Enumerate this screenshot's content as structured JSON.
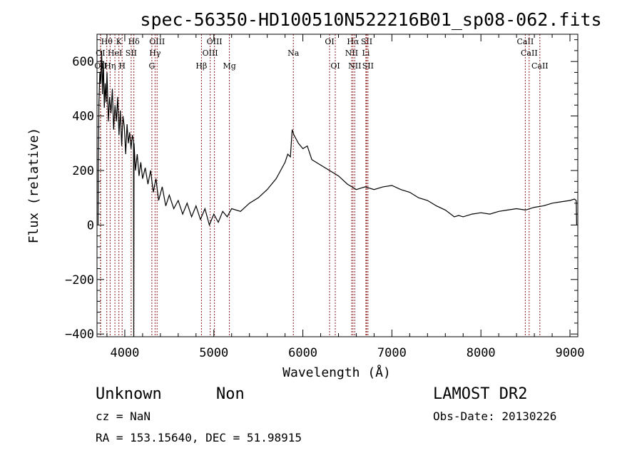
{
  "chart_data": {
    "type": "line",
    "title": "spec-56350-HD100510N522216B01_sp08-062.fits",
    "xlabel": "Wavelength (Å)",
    "ylabel": "Flux (relative)",
    "xlim": [
      3688,
      9088
    ],
    "ylim": [
      -410,
      700
    ],
    "xticks": [
      4000,
      5000,
      6000,
      7000,
      8000,
      9000
    ],
    "yticks": [
      -400,
      -200,
      0,
      200,
      400,
      600
    ],
    "grid": false,
    "series": [
      {
        "name": "spectrum",
        "x": [
          3700,
          3702,
          3710,
          3720,
          3730,
          3740,
          3750,
          3760,
          3770,
          3780,
          3790,
          3800,
          3815,
          3830,
          3845,
          3860,
          3875,
          3890,
          3905,
          3920,
          3935,
          3950,
          3965,
          3980,
          3995,
          4010,
          4025,
          4040,
          4055,
          4070,
          4085,
          4098,
          4101,
          4104,
          4120,
          4140,
          4160,
          4180,
          4200,
          4230,
          4260,
          4290,
          4320,
          4350,
          4380,
          4420,
          4460,
          4500,
          4550,
          4600,
          4650,
          4700,
          4750,
          4800,
          4850,
          4900,
          4950,
          5000,
          5050,
          5100,
          5150,
          5200,
          5300,
          5400,
          5500,
          5600,
          5700,
          5750,
          5800,
          5830,
          5860,
          5880,
          5900,
          5950,
          6000,
          6050,
          6100,
          6200,
          6300,
          6400,
          6500,
          6600,
          6700,
          6800,
          6900,
          7000,
          7100,
          7200,
          7300,
          7400,
          7500,
          7600,
          7700,
          7750,
          7800,
          7900,
          8000,
          8100,
          8200,
          8300,
          8400,
          8500,
          8600,
          8700,
          8800,
          8900,
          9000,
          9050,
          9070,
          9075
        ],
        "y": [
          0,
          200,
          450,
          560,
          520,
          640,
          480,
          600,
          430,
          520,
          450,
          560,
          380,
          470,
          410,
          500,
          350,
          440,
          380,
          470,
          330,
          420,
          290,
          400,
          360,
          260,
          370,
          300,
          340,
          280,
          330,
          310,
          -410,
          300,
          200,
          260,
          180,
          230,
          170,
          210,
          150,
          200,
          120,
          170,
          90,
          140,
          70,
          110,
          60,
          90,
          40,
          80,
          30,
          70,
          20,
          60,
          0,
          40,
          10,
          50,
          30,
          60,
          50,
          80,
          100,
          130,
          170,
          200,
          230,
          260,
          250,
          350,
          330,
          300,
          280,
          290,
          240,
          220,
          200,
          180,
          150,
          130,
          140,
          130,
          140,
          145,
          130,
          120,
          100,
          90,
          70,
          55,
          30,
          35,
          30,
          40,
          45,
          40,
          50,
          55,
          60,
          55,
          65,
          70,
          80,
          85,
          90,
          95,
          90,
          0
        ]
      }
    ],
    "line_markers": [
      {
        "label": "Hθ",
        "wl": 3798,
        "row": 1
      },
      {
        "label": "K",
        "wl": 3934,
        "row": 1
      },
      {
        "label": "Hδ",
        "wl": 4102,
        "row": 1
      },
      {
        "label": "OIII",
        "wl": 4363,
        "row": 1
      },
      {
        "label": "OIII",
        "wl": 5007,
        "row": 1
      },
      {
        "label": "OI",
        "wl": 6300,
        "row": 1
      },
      {
        "label": "Hα",
        "wl": 6563,
        "row": 1
      },
      {
        "label": "SII",
        "wl": 6716,
        "row": 1
      },
      {
        "label": "CaII",
        "wl": 8498,
        "row": 1
      },
      {
        "label": "OI",
        "wl": 3727,
        "row": 2
      },
      {
        "label": "HeI",
        "wl": 3889,
        "row": 2
      },
      {
        "label": "SII",
        "wl": 4072,
        "row": 2
      },
      {
        "label": "Hγ",
        "wl": 4340,
        "row": 2
      },
      {
        "label": "OIII",
        "wl": 4959,
        "row": 2
      },
      {
        "label": "Na",
        "wl": 5893,
        "row": 2
      },
      {
        "label": "NII",
        "wl": 6548,
        "row": 2
      },
      {
        "label": "Li",
        "wl": 6708,
        "row": 2
      },
      {
        "label": "CaII",
        "wl": 8542,
        "row": 2
      },
      {
        "label": "OII",
        "wl": 3729,
        "row": 3
      },
      {
        "label": "Hη",
        "wl": 3835,
        "row": 3
      },
      {
        "label": "H",
        "wl": 3970,
        "row": 3
      },
      {
        "label": "G",
        "wl": 4304,
        "row": 3
      },
      {
        "label": "Hβ",
        "wl": 4861,
        "row": 3
      },
      {
        "label": "Mg",
        "wl": 5175,
        "row": 3
      },
      {
        "label": "OI",
        "wl": 6364,
        "row": 3
      },
      {
        "label": "NII",
        "wl": 6583,
        "row": 3
      },
      {
        "label": "SII",
        "wl": 6731,
        "row": 3
      },
      {
        "label": "CaII",
        "wl": 8662,
        "row": 3
      }
    ],
    "colors": {
      "spectrum": "#000000",
      "markers": "#8b1a1a"
    }
  },
  "info": {
    "class": "Unknown",
    "subclass": "Non",
    "cz": "cz = NaN",
    "coords": "RA = 153.15640, DEC =  51.98915",
    "survey": "LAMOST DR2",
    "obs_date": "Obs-Date: 20130226"
  }
}
